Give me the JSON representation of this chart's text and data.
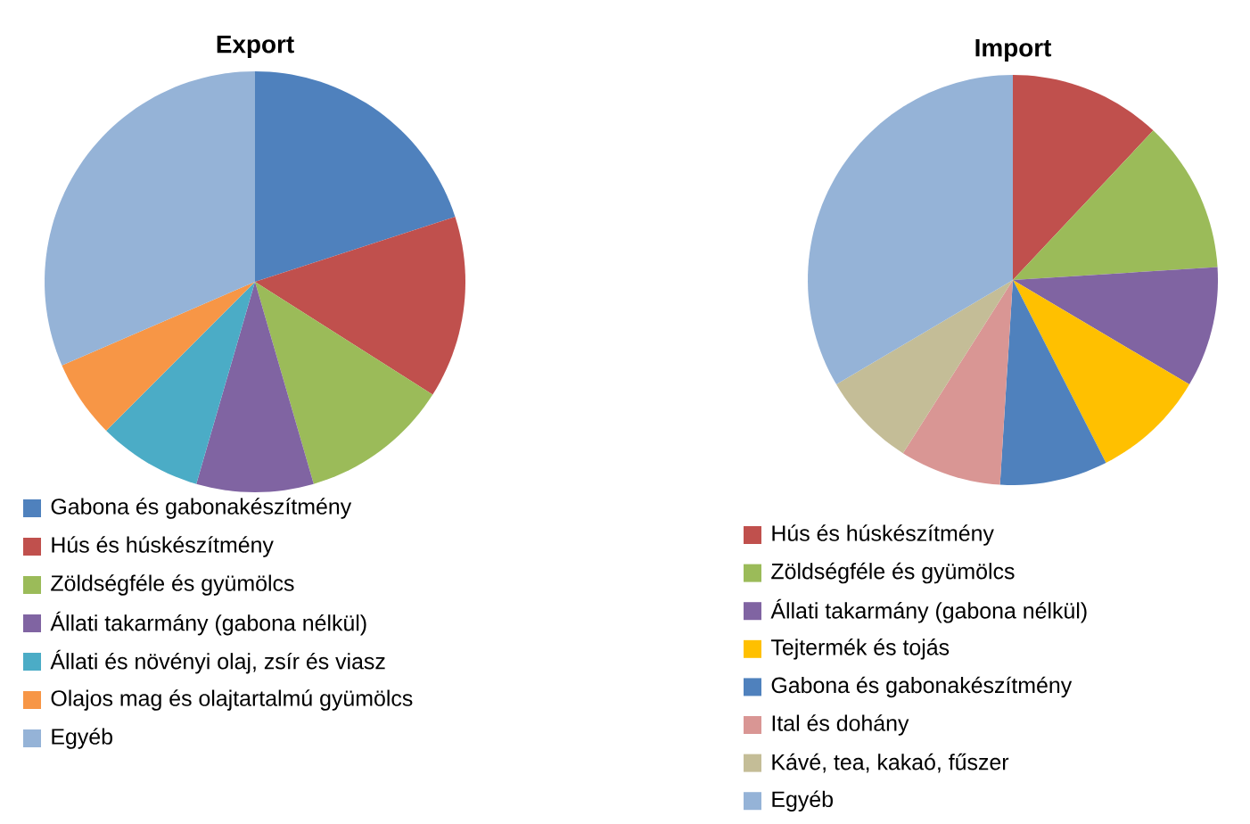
{
  "chart_data": [
    {
      "type": "pie",
      "title": "Export",
      "legend": "bottom",
      "categories": [
        "Gabona és gabonakészítmény",
        "Hús és húskészítmény",
        "Zöldségféle és gyümölcs",
        "Állati takarmány (gabona nélkül)",
        "Állati és növényi olaj, zsír és viasz",
        "Olajos mag és olajtartalmú gyümölcs",
        "Egyéb"
      ],
      "values": [
        20,
        14,
        11.5,
        9,
        8,
        6,
        31.5
      ],
      "colors": [
        "#4f81bd",
        "#c0504d",
        "#9bbb59",
        "#8064a2",
        "#4bacc6",
        "#f79646",
        "#95b3d7"
      ]
    },
    {
      "type": "pie",
      "title": "Import",
      "legend": "bottom",
      "categories": [
        "Hús és húskészítmény",
        "Zöldségféle és gyümölcs",
        "Állati takarmány (gabona nélkül)",
        "Tejtermék és tojás",
        "Gabona és gabonakészítmény",
        "Ital és dohány",
        "Kávé, tea, kakaó, fűszer",
        "Egyéb"
      ],
      "values": [
        12,
        12,
        9.5,
        9,
        8.5,
        8,
        7.5,
        33.5
      ],
      "colors": [
        "#c0504d",
        "#9bbb59",
        "#8064a2",
        "#ffc000",
        "#4f81bd",
        "#d99694",
        "#c4bd97",
        "#95b3d7"
      ]
    }
  ]
}
